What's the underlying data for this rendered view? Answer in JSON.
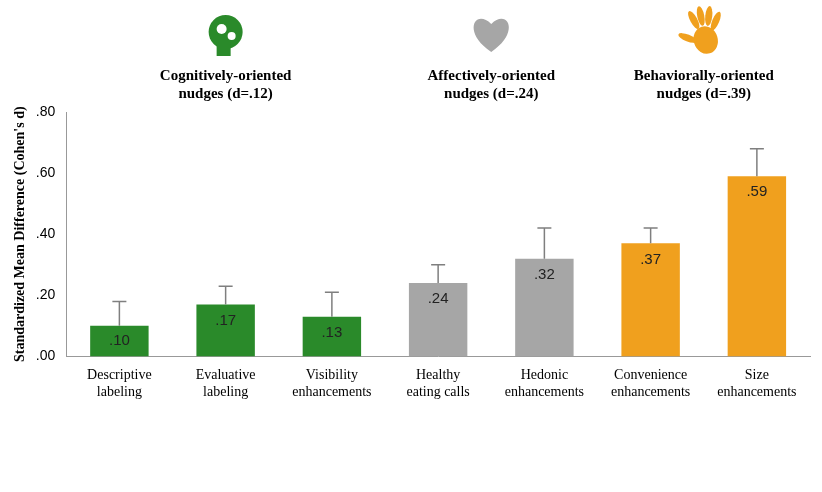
{
  "chart_data": {
    "type": "bar",
    "y_label": "Standardized Mean Difference (Cohen's d)",
    "categories": [
      "Descriptive labeling",
      "Evaluative labeling",
      "Visibility enhancements",
      "Healthy eating calls",
      "Hedonic enhancements",
      "Convenience enhancements",
      "Size enhancements"
    ],
    "values": [
      0.1,
      0.17,
      0.13,
      0.24,
      0.32,
      0.37,
      0.59
    ],
    "value_labels": [
      ".10",
      ".17",
      ".13",
      ".24",
      ".32",
      ".37",
      ".59"
    ],
    "errors": [
      0.08,
      0.06,
      0.08,
      0.06,
      0.1,
      0.05,
      0.09
    ],
    "colors": [
      "#2a8a2a",
      "#2a8a2a",
      "#2a8a2a",
      "#a6a6a6",
      "#a6a6a6",
      "#f0a01e",
      "#f0a01e"
    ],
    "ylim": [
      0,
      0.8
    ],
    "yticks": [
      {
        "value": 0,
        "label": ".00"
      },
      {
        "value": 0.2,
        "label": ".20"
      },
      {
        "value": 0.4,
        "label": ".40"
      },
      {
        "value": 0.6,
        "label": ".60"
      },
      {
        "value": 0.8,
        "label": ".80"
      }
    ],
    "grid": false,
    "data_labels": true,
    "groups": [
      {
        "title": "Cognitively-oriented nudges (d=.12)",
        "categories": [
          "Descriptive labeling",
          "Evaluative labeling",
          "Visibility enhancements"
        ],
        "color": "#2a8a2a"
      },
      {
        "title": "Affectively-oriented nudges (d=.24)",
        "categories": [
          "Healthy eating calls",
          "Hedonic enhancements"
        ],
        "color": "#a6a6a6"
      },
      {
        "title": "Behaviorally-oriented nudges (d=.39)",
        "categories": [
          "Convenience enhancements",
          "Size enhancements"
        ],
        "color": "#f0a01e"
      }
    ]
  }
}
